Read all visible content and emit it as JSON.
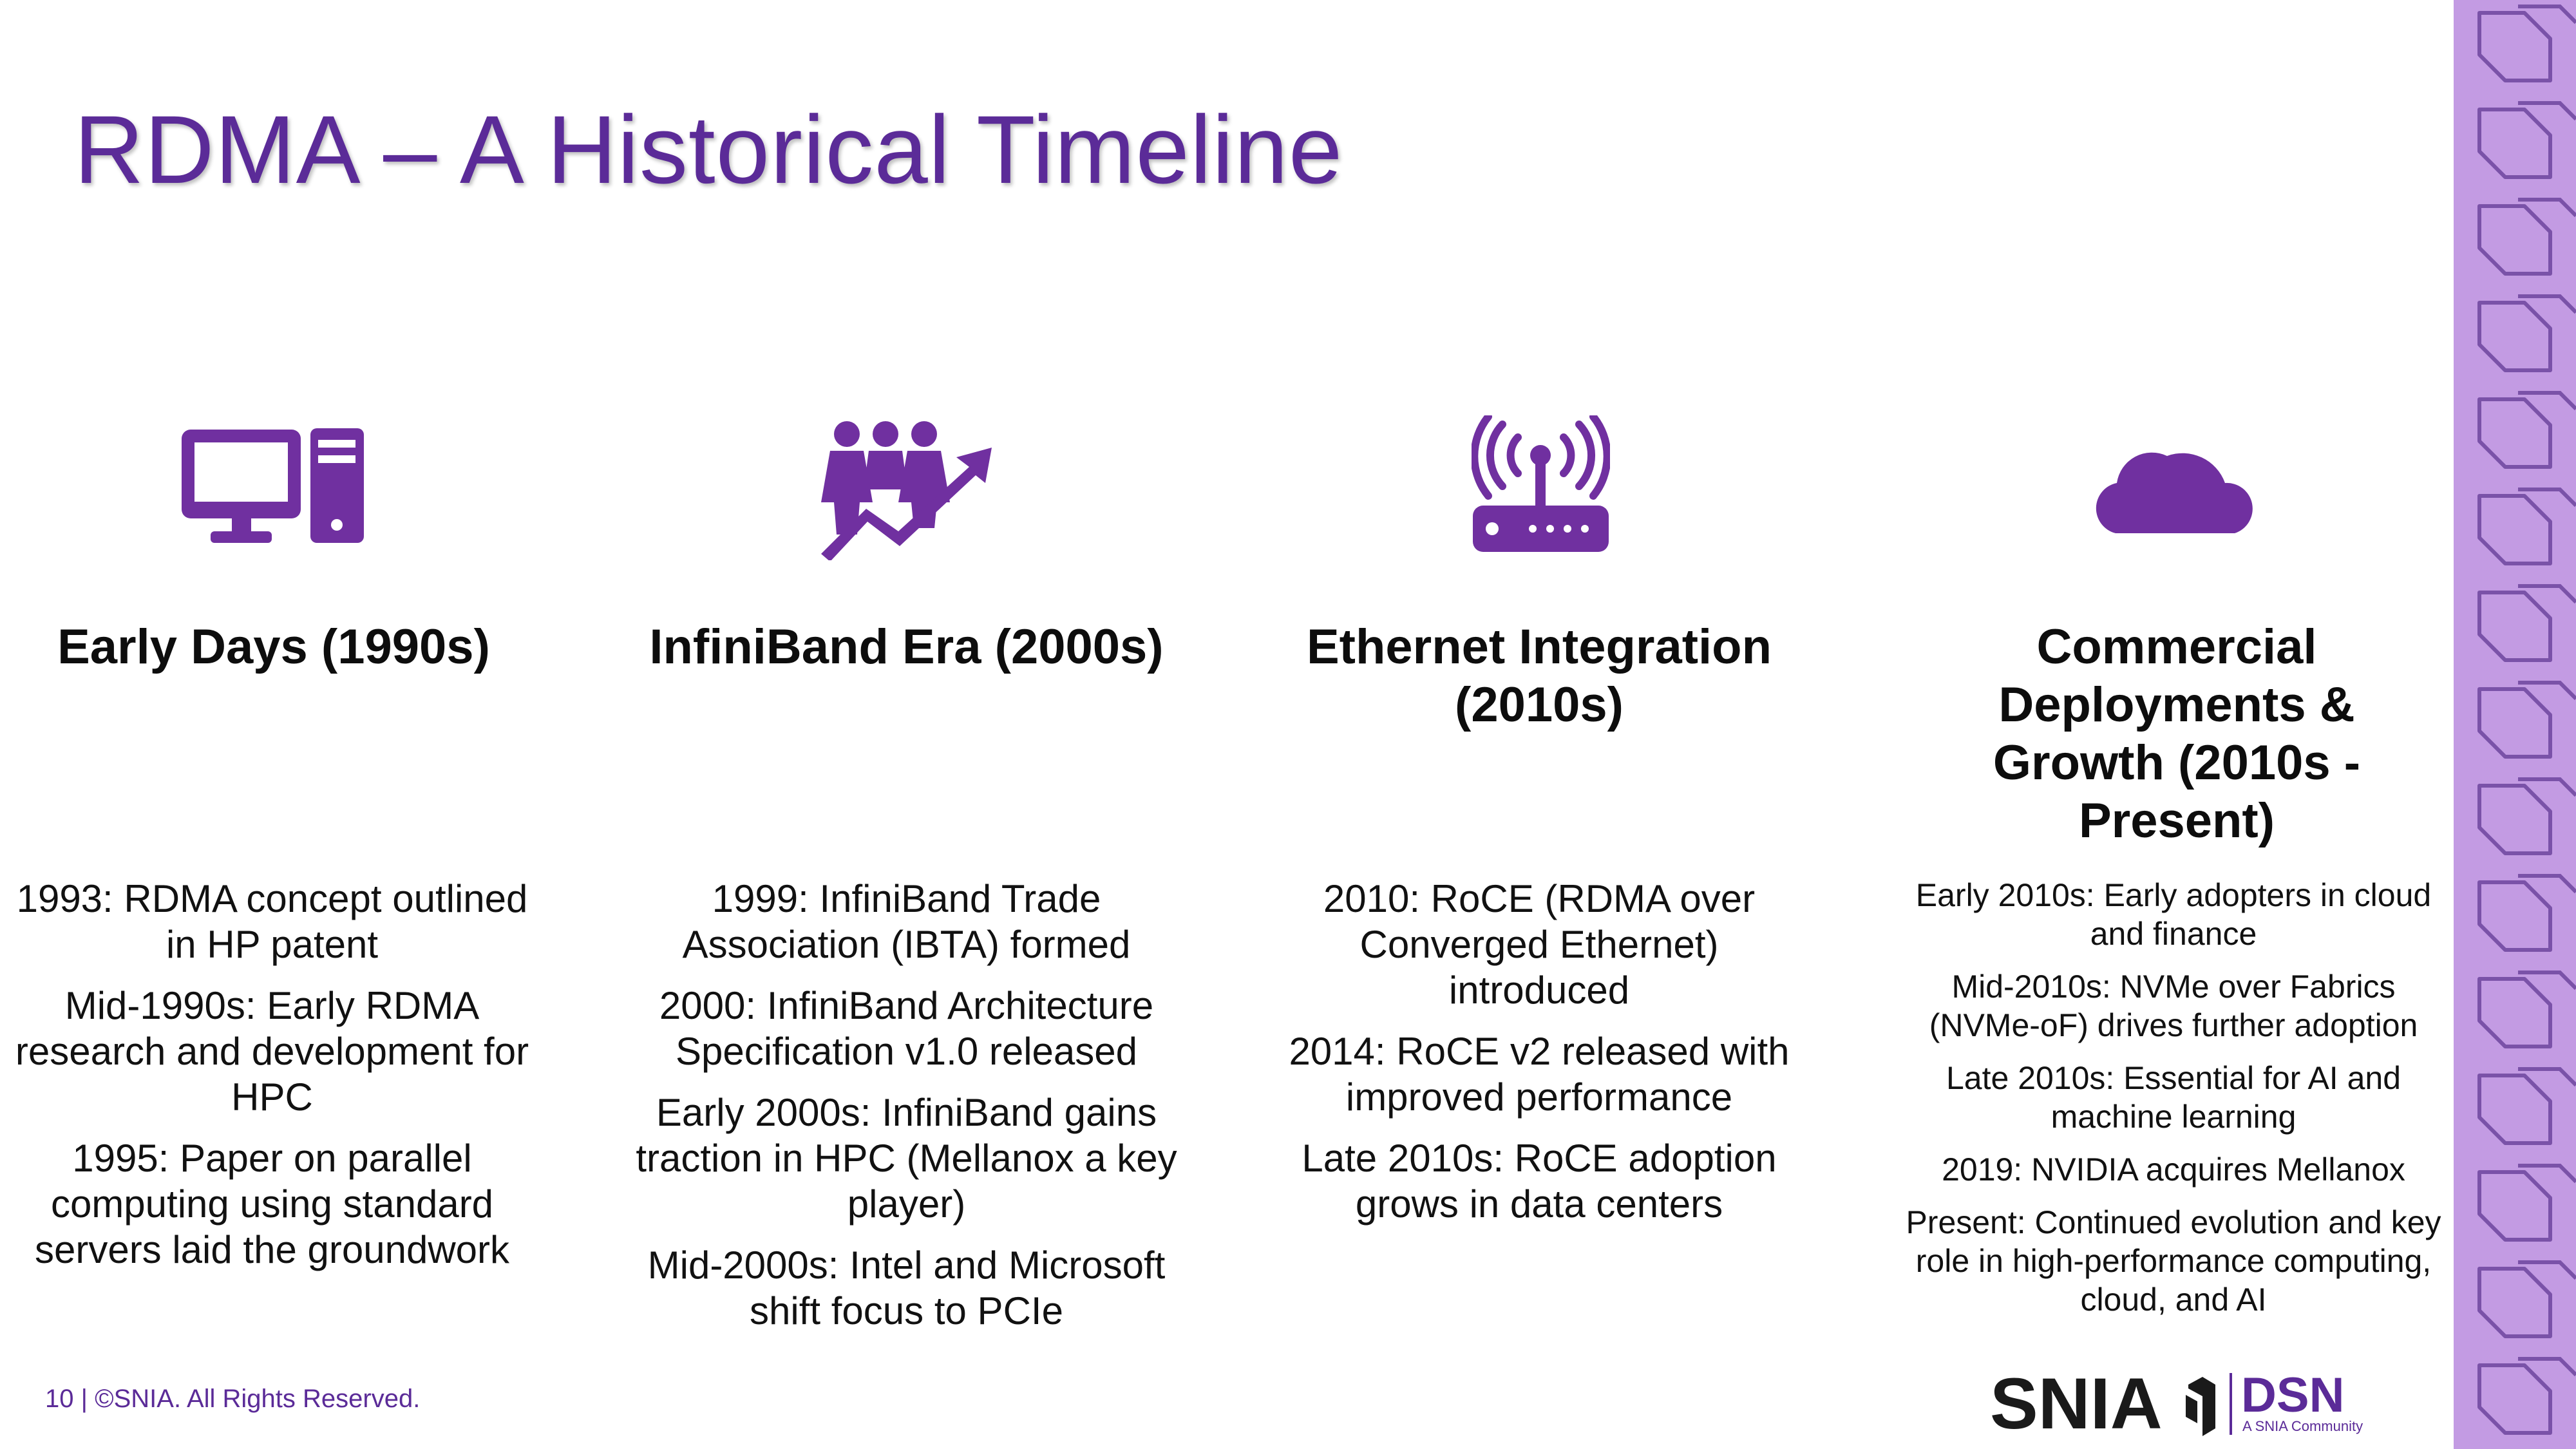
{
  "slide": {
    "title": "RDMA – A Historical Timeline",
    "footer": "10 | ©SNIA. All Rights Reserved."
  },
  "columns": [
    {
      "icon": "desktop-computer-icon",
      "heading": "Early Days (1990s)",
      "items": [
        "1993: RDMA concept outlined in HP patent",
        "Mid-1990s: Early RDMA research and development for HPC",
        "1995: Paper on parallel computing using standard servers laid the groundwork"
      ]
    },
    {
      "icon": "team-growth-arrow-icon",
      "heading": "InfiniBand Era (2000s)",
      "items": [
        "1999: InfiniBand Trade Association (IBTA) formed",
        "2000: InfiniBand Architecture Specification v1.0 released",
        "Early 2000s: InfiniBand gains traction in HPC (Mellanox a key player)",
        "Mid-2000s: Intel and Microsoft shift focus to PCIe"
      ]
    },
    {
      "icon": "wireless-router-icon",
      "heading": "Ethernet Integration (2010s)",
      "items": [
        "2010: RoCE (RDMA over Converged Ethernet) introduced",
        "2014: RoCE v2 released with improved performance",
        "Late 2010s: RoCE adoption grows in data centers"
      ]
    },
    {
      "icon": "cloud-icon",
      "heading": "Commercial Deployments & Growth (2010s - Present)",
      "items": [
        "Early 2010s: Early adopters in cloud and finance",
        "Mid-2010s: NVMe over Fabrics (NVMe-oF) drives further adoption",
        "Late 2010s: Essential for AI and machine learning",
        "2019: NVIDIA acquires Mellanox",
        "Present: Continued evolution and key role in high-performance computing, cloud, and AI"
      ]
    }
  ],
  "logo": {
    "snia": "SNIA",
    "dsn": "DSN",
    "dsn_sub": "A SNIA Community"
  },
  "colors": {
    "accent": "#5b2b98",
    "icon": "#7030a0",
    "band": "#c39be3"
  }
}
